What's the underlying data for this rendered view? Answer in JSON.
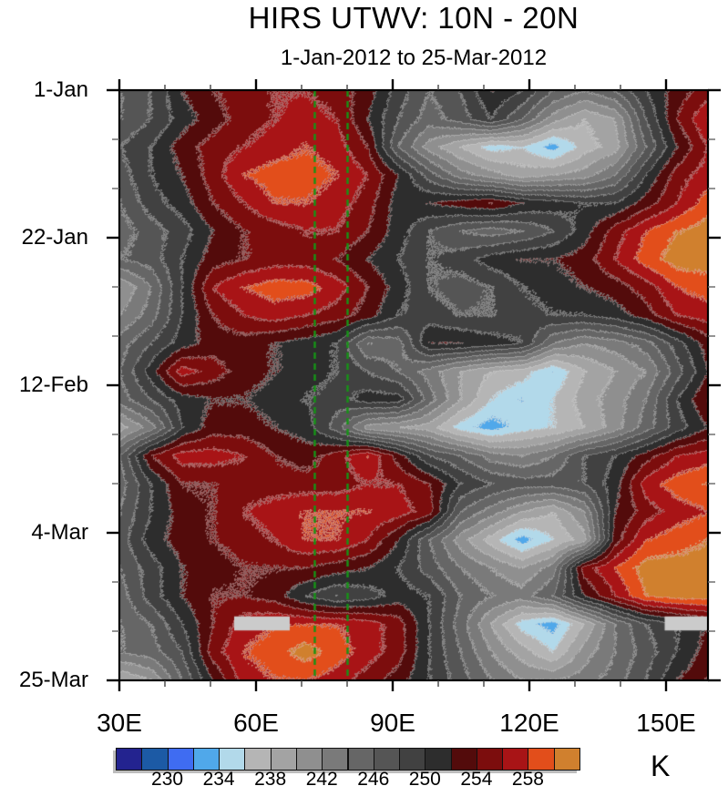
{
  "title": "HIRS UTWV: 10N - 20N",
  "subtitle": "1-Jan-2012 to 25-Mar-2012",
  "axes": {
    "x": {
      "major": [
        {
          "label": "30E",
          "lon": 30
        },
        {
          "label": "60E",
          "lon": 60
        },
        {
          "label": "90E",
          "lon": 90
        },
        {
          "label": "120E",
          "lon": 120
        },
        {
          "label": "150E",
          "lon": 150
        }
      ],
      "minor_lons": [
        40,
        50,
        70,
        80,
        100,
        110,
        130,
        140
      ],
      "range_lon": [
        30,
        159.2
      ]
    },
    "y": {
      "major": [
        {
          "label": "1-Jan",
          "day": 0
        },
        {
          "label": "22-Jan",
          "day": 21
        },
        {
          "label": "12-Feb",
          "day": 42
        },
        {
          "label": "4-Mar",
          "day": 63
        },
        {
          "label": "25-Mar",
          "day": 84
        }
      ],
      "minor_days": [
        7,
        14,
        28,
        35,
        49,
        56,
        70,
        77
      ],
      "range_days": [
        0,
        84
      ]
    }
  },
  "colorbar": {
    "unit": "K",
    "labels": [
      "230",
      "234",
      "238",
      "242",
      "246",
      "250",
      "254",
      "258"
    ],
    "label_boundary_indices": [
      2,
      4,
      6,
      8,
      10,
      12,
      14,
      16
    ],
    "level_min_boundary": 228,
    "level_step": 2,
    "colors": [
      "#23238f",
      "#1c5aa5",
      "#3f6cf2",
      "#50a8ea",
      "#b2d9ea",
      "#b5b5b5",
      "#a3a3a3",
      "#8f8f8f",
      "#7a7a7a",
      "#666666",
      "#555555",
      "#414141",
      "#2d2d2d",
      "#530b0b",
      "#7c0d0d",
      "#a81416",
      "#e24e1b",
      "#d0802e"
    ]
  },
  "annotations": {
    "reference_lines": {
      "lons": [
        72.8,
        80.0
      ],
      "color": "#169416",
      "style": "dashed"
    },
    "missing_data_bars": [
      {
        "lon_min": 55.2,
        "lon_max": 67.4,
        "day_min": 74.9,
        "day_max": 76.9
      },
      {
        "lon_min": 149.7,
        "lon_max": 159.2,
        "day_min": 74.9,
        "day_max": 76.9
      }
    ],
    "missing_bar_color": "#cbcbcb"
  },
  "chart_data": {
    "type": "heatmap",
    "value_unit": "K",
    "x": [
      30,
      36.8,
      43.6,
      50.4,
      57.2,
      64,
      70.8,
      77.6,
      84.4,
      91.2,
      98,
      104.8,
      111.6,
      118.4,
      125.2,
      132,
      138.8,
      145.6,
      152.4,
      159.2
    ],
    "y_days": [
      0,
      4,
      8,
      12,
      16,
      20,
      24,
      28,
      32,
      36,
      40,
      44,
      48,
      52,
      56,
      60,
      64,
      68,
      72,
      76,
      80,
      84
    ],
    "values": [
      [
        246,
        248,
        252,
        254,
        255,
        256,
        256,
        255,
        253,
        249,
        246,
        248,
        252,
        250,
        246,
        244,
        246,
        250,
        253,
        255
      ],
      [
        246,
        248,
        251,
        253,
        255,
        256,
        257,
        256,
        252,
        248,
        245,
        247,
        250,
        246,
        241,
        238,
        240,
        248,
        254,
        258
      ],
      [
        248,
        250,
        253,
        255,
        256,
        257,
        258,
        257,
        254,
        246,
        241,
        238,
        235,
        236,
        233,
        237,
        239,
        246,
        252,
        256
      ],
      [
        247,
        250,
        252,
        255,
        258,
        259,
        259,
        258,
        256,
        252,
        247,
        243,
        241,
        239,
        240,
        241,
        244,
        250,
        255,
        257
      ],
      [
        246,
        249,
        251,
        254,
        256,
        258,
        258,
        257,
        255,
        251,
        252,
        253,
        254,
        252,
        251,
        250,
        250,
        253,
        256,
        259
      ],
      [
        245,
        247,
        249,
        252,
        254,
        255,
        256,
        256,
        254,
        251,
        248,
        246,
        245,
        246,
        248,
        251,
        255,
        258,
        260,
        261
      ],
      [
        246,
        247,
        250,
        253,
        254,
        255,
        255,
        254,
        252,
        250,
        248,
        249,
        251,
        252,
        252,
        253,
        256,
        259,
        261,
        261
      ],
      [
        240,
        244,
        250,
        256,
        258,
        259,
        259,
        257,
        254,
        251,
        248,
        247,
        248,
        250,
        251,
        252,
        253,
        255,
        258,
        259
      ],
      [
        242,
        245,
        250,
        254,
        256,
        257,
        256,
        255,
        253,
        250,
        249,
        248,
        248,
        249,
        250,
        250,
        251,
        253,
        256,
        257
      ],
      [
        245,
        248,
        251,
        253,
        253,
        252,
        251,
        250,
        244,
        245,
        252,
        252,
        251,
        250,
        244,
        242,
        243,
        245,
        249,
        253
      ],
      [
        246,
        251,
        257,
        255,
        253,
        252,
        251,
        250,
        248,
        246,
        243,
        240,
        238,
        237,
        234,
        238,
        240,
        242,
        247,
        252
      ],
      [
        245,
        248,
        251,
        252,
        252,
        251,
        250,
        249,
        251,
        251,
        245,
        240,
        236,
        234,
        236,
        239,
        241,
        244,
        250,
        254
      ],
      [
        239,
        243,
        250,
        253,
        253,
        252,
        251,
        247,
        241,
        240,
        239,
        235,
        233,
        235,
        236,
        238,
        241,
        245,
        249,
        252
      ],
      [
        246,
        254,
        257,
        257,
        256,
        254,
        253,
        255,
        258,
        253,
        248,
        246,
        243,
        242,
        244,
        248,
        250,
        253,
        256,
        257
      ],
      [
        245,
        250,
        254,
        254,
        255,
        255,
        255,
        255,
        256,
        256,
        254,
        250,
        248,
        247,
        247,
        248,
        251,
        257,
        259,
        260
      ],
      [
        246,
        250,
        253,
        254,
        256,
        257,
        258,
        258,
        258,
        257,
        255,
        246,
        243,
        240,
        238,
        242,
        252,
        255,
        257,
        258
      ],
      [
        247,
        251,
        253,
        254,
        255,
        256,
        258,
        258,
        256,
        252,
        246,
        241,
        237,
        233,
        236,
        239,
        253,
        258,
        259,
        260
      ],
      [
        246,
        249,
        252,
        253,
        254,
        254,
        254,
        253,
        252,
        250,
        247,
        244,
        242,
        240,
        243,
        255,
        258,
        261,
        261,
        261
      ],
      [
        245,
        249,
        252,
        254,
        254,
        253,
        250,
        248,
        249,
        251,
        250,
        246,
        244,
        243,
        246,
        252,
        256,
        260,
        261,
        261
      ],
      [
        244,
        246,
        250,
        254,
        257,
        258,
        258,
        258,
        257,
        255,
        250,
        245,
        240,
        235,
        233,
        238,
        244,
        248,
        250,
        252
      ],
      [
        244,
        245,
        248,
        255,
        258,
        259,
        261,
        259,
        257,
        255,
        250,
        246,
        242,
        239,
        236,
        241,
        244,
        247,
        250,
        253
      ],
      [
        238,
        240,
        246,
        252,
        257,
        258,
        258,
        257,
        255,
        253,
        250,
        247,
        244,
        242,
        242,
        243,
        245,
        248,
        252,
        254
      ]
    ]
  }
}
